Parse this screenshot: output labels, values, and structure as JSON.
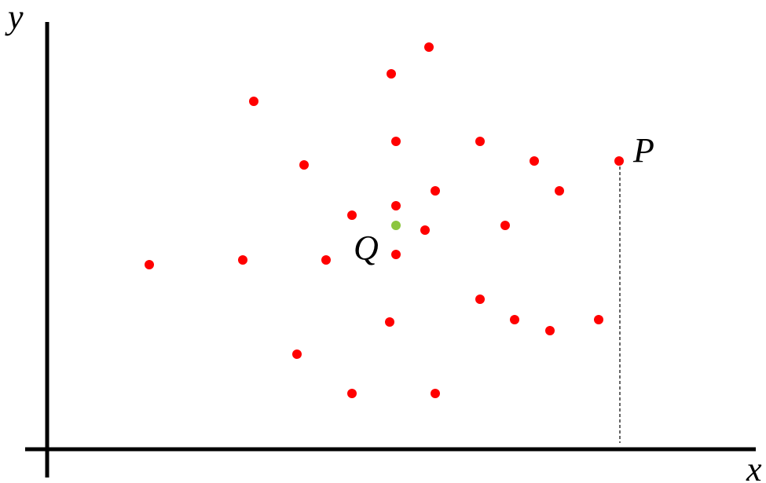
{
  "labels": {
    "y_axis": "y",
    "x_axis": "x",
    "point_p": "P",
    "point_q": "Q"
  }
}
